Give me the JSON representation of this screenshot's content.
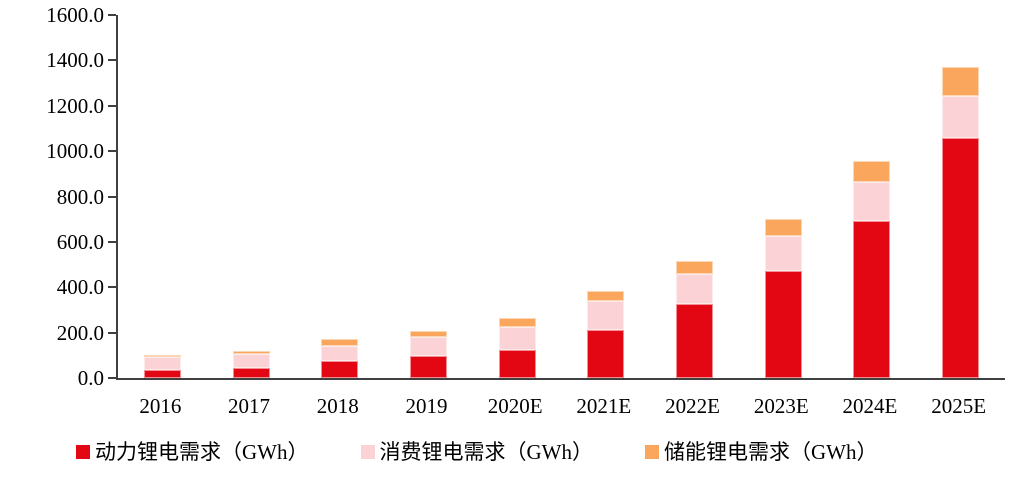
{
  "chart_data": {
    "type": "bar",
    "stacked": true,
    "title": "",
    "xlabel": "",
    "ylabel": "",
    "categories": [
      "2016",
      "2017",
      "2018",
      "2019",
      "2020E",
      "2021E",
      "2022E",
      "2023E",
      "2024E",
      "2025E"
    ],
    "series": [
      {
        "name": "动力锂电需求（GWh）",
        "color": "#e30613",
        "values": [
          35,
          43,
          74,
          96,
          124,
          212,
          327,
          473,
          692,
          1057
        ]
      },
      {
        "name": "消费锂电需求（GWh）",
        "color": "#fbd2d5",
        "values": [
          57,
          63,
          69,
          84,
          100,
          126,
          133,
          153,
          171,
          188
        ]
      },
      {
        "name": "储能锂电需求（GWh）",
        "color": "#faa65c",
        "values": [
          9,
          12,
          28,
          27,
          40,
          47,
          54,
          74,
          94,
          127
        ]
      }
    ],
    "ylim": [
      0,
      1600
    ],
    "ytick_step": 200,
    "ytick_labels": [
      "0.0",
      "200.0",
      "400.0",
      "600.0",
      "800.0",
      "1000.0",
      "1200.0",
      "1400.0",
      "1600.0"
    ],
    "grid": false,
    "legend_position": "bottom",
    "axis_color": "#404040",
    "text_color": "#000000"
  }
}
